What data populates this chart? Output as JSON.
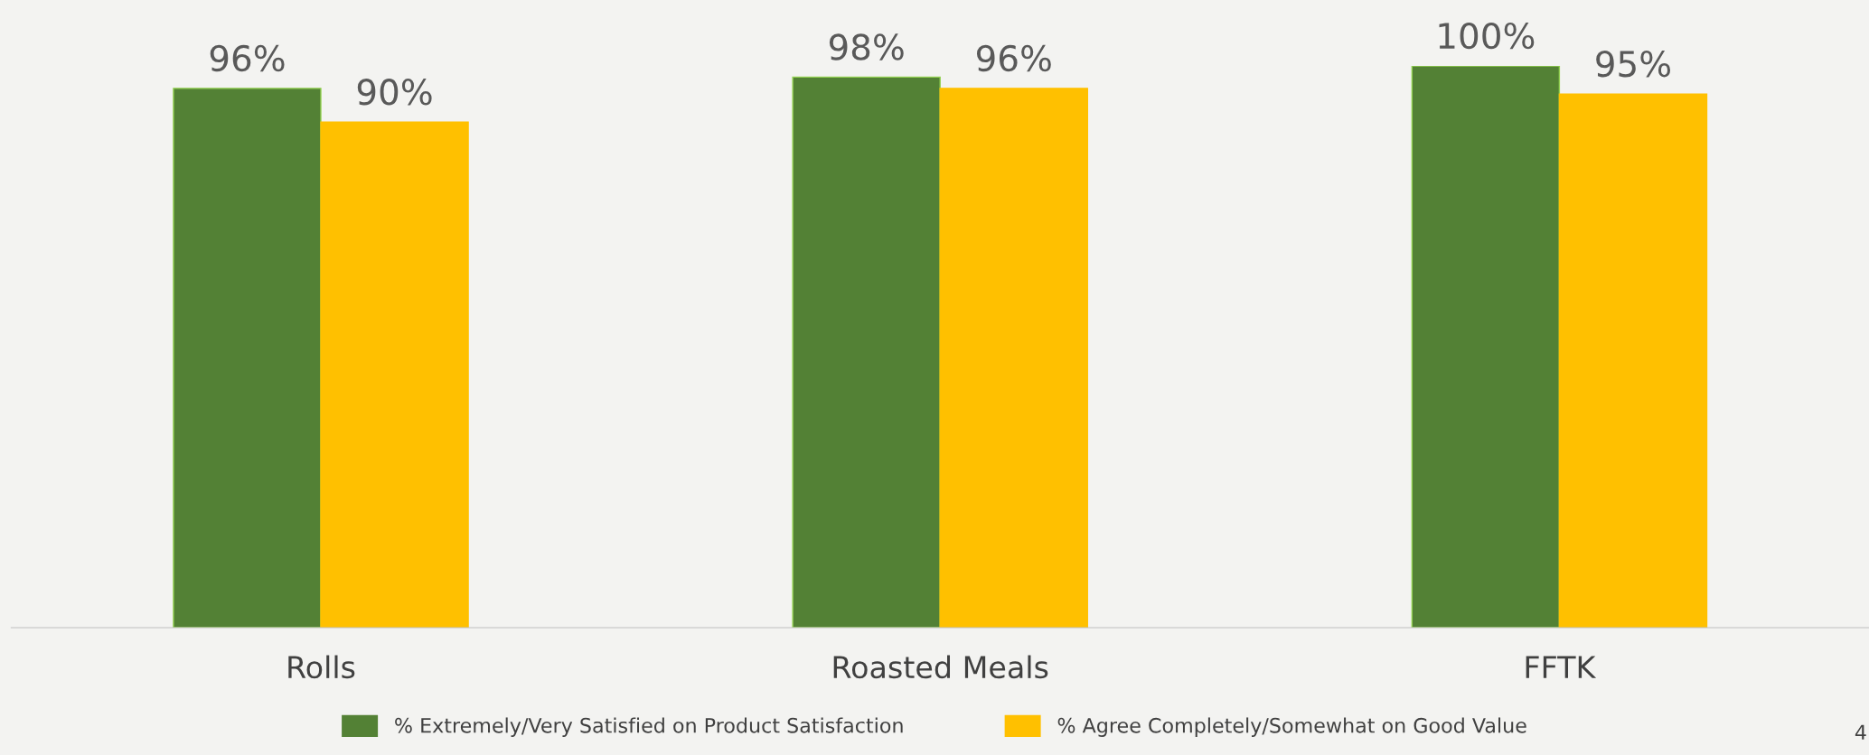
{
  "chart_data": {
    "type": "bar",
    "categories": [
      "Rolls",
      "Roasted Meals",
      "FFTK"
    ],
    "series": [
      {
        "name": "% Extremely/Very Satisfied on Product Satisfaction",
        "color": "#538135",
        "values": [
          96,
          98,
          100
        ],
        "value_labels": [
          "96%",
          "98%",
          "100%"
        ]
      },
      {
        "name": "% Agree Completely/Somewhat on Good Value",
        "color": "#ffc000",
        "values": [
          90,
          96,
          95
        ],
        "value_labels": [
          "90%",
          "96%",
          "95%"
        ]
      }
    ],
    "ylim": [
      0,
      100
    ],
    "grid": false,
    "legend": "bottom",
    "tick_labels": "x",
    "annotations": [
      "4"
    ]
  }
}
